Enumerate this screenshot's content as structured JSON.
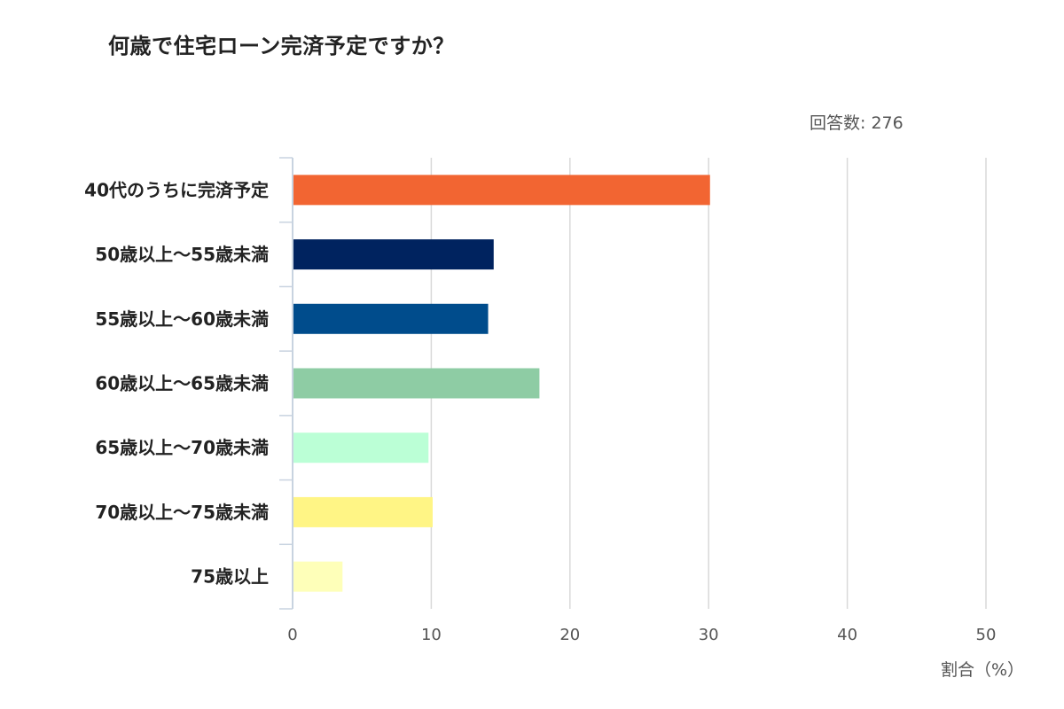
{
  "title": "何歳で住宅ローン完済予定ですか？",
  "respondents_label": "回答数: 276",
  "chart_data": {
    "type": "bar",
    "orientation": "horizontal",
    "title": "何歳で住宅ローン完済予定ですか？",
    "xlabel": "割合（%）",
    "ylabel": "",
    "xlim": [
      0,
      50
    ],
    "xticks": [
      "0",
      "10",
      "20",
      "30",
      "40",
      "50"
    ],
    "grid": true,
    "categories": [
      "40代のうちに完済予定",
      "50歳以上～55歳未満",
      "55歳以上～60歳未満",
      "60歳以上～65歳未満",
      "65歳以上～70歳未満",
      "70歳以上～75歳未満",
      "75歳以上"
    ],
    "values": [
      30.1,
      14.5,
      14.1,
      17.8,
      9.8,
      10.1,
      3.6
    ],
    "colors": [
      "#f26532",
      "#00235f",
      "#004c8c",
      "#8ecca4",
      "#bbffd6",
      "#fff585",
      "#feffb9"
    ]
  }
}
